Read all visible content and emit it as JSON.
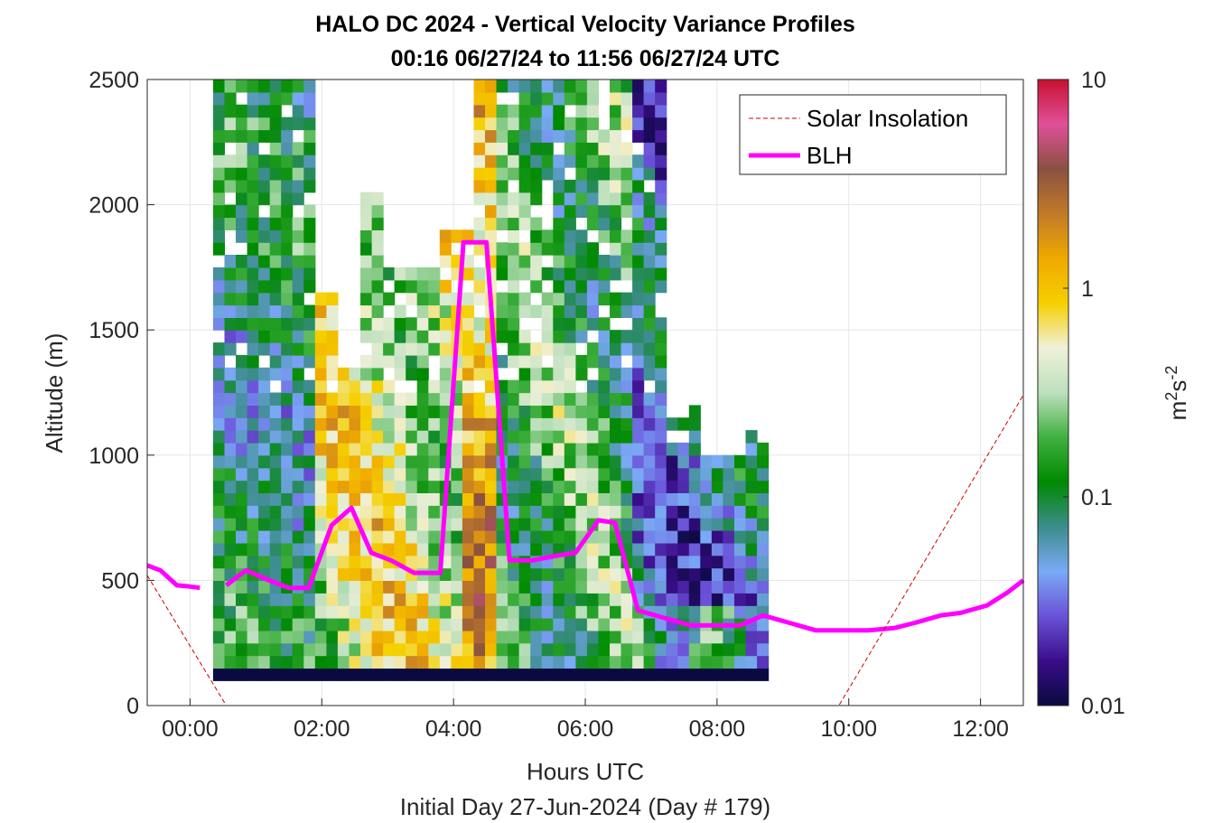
{
  "chart_data": {
    "type": "heatmap",
    "title": "HALO DC 2024 - Vertical Velocity Variance Profiles",
    "subtitle": "00:16 06/27/24 to 11:56 06/27/24  UTC",
    "xlabel": "Hours UTC",
    "xlabel2": "Initial Day 27-Jun-2024 (Day # 179)",
    "ylabel": "Altitude (m)",
    "x_ticks": [
      "00:00",
      "02:00",
      "04:00",
      "06:00",
      "08:00",
      "10:00",
      "12:00"
    ],
    "x_tick_hours": [
      0,
      2,
      4,
      6,
      8,
      10,
      12
    ],
    "xlim_hours": [
      -0.65,
      12.65
    ],
    "y_ticks": [
      "0",
      "500",
      "1000",
      "1500",
      "2000",
      "2500"
    ],
    "y_tick_values": [
      0,
      500,
      1000,
      1500,
      2000,
      2500
    ],
    "ylim": [
      0,
      2500
    ],
    "grid": true,
    "colorbar": {
      "label_base": "m",
      "label_sup1": "2",
      "label_mid": "s",
      "label_sup2": "-2",
      "scale": "log",
      "range": [
        0.01,
        10
      ],
      "ticks": [
        "0.01",
        "0.1",
        "1",
        "10"
      ],
      "tick_values": [
        0.01,
        0.1,
        1,
        10
      ],
      "colors": [
        "#0a0a40",
        "#3a0d8a",
        "#6a52d8",
        "#7aaaf5",
        "#3c8c8c",
        "#008a00",
        "#40b040",
        "#bde0bd",
        "#f0f0d8",
        "#f5d000",
        "#f0a800",
        "#c07a28",
        "#8a5040",
        "#e0509a",
        "#c8102e"
      ]
    },
    "legend": {
      "position": "top-right",
      "entries": [
        "Solar Insolation",
        "BLH"
      ]
    },
    "series": [
      {
        "name": "BLH",
        "color": "#ff00ff",
        "segments": [
          {
            "x": [
              -0.65,
              -0.45,
              -0.2,
              0.0,
              0.15
            ],
            "y": [
              560,
              540,
              480,
              475,
              470
            ]
          },
          {
            "x": [
              0.55,
              0.85,
              1.2,
              1.5,
              1.8,
              2.15,
              2.45,
              2.75,
              3.05,
              3.4,
              3.8,
              4.15,
              4.5,
              4.85,
              5.2,
              5.6,
              5.85,
              6.2,
              6.45,
              6.8,
              7.2,
              7.6,
              7.95,
              8.35,
              8.7,
              9.1,
              9.5,
              9.9,
              10.3,
              10.7,
              11.0,
              11.4,
              11.7,
              12.1,
              12.4,
              12.65
            ]
          }
        ]
      },
      {
        "name": "Solar Insolation",
        "color": "#cc0000",
        "x": [
          -0.65,
          0.55,
          9.85,
          12.65
        ],
        "y": [
          520,
          0,
          0,
          1240
        ]
      }
    ],
    "heatmap": {
      "x_start_hours": 0.35,
      "x_step_hours": 0.172,
      "n_columns": 49,
      "y_bin_m": 50,
      "n_rows": 48,
      "value_range_log10": [
        -2,
        1
      ],
      "description_values": "log10 variance per time/altitude bin; null = no data"
    }
  }
}
